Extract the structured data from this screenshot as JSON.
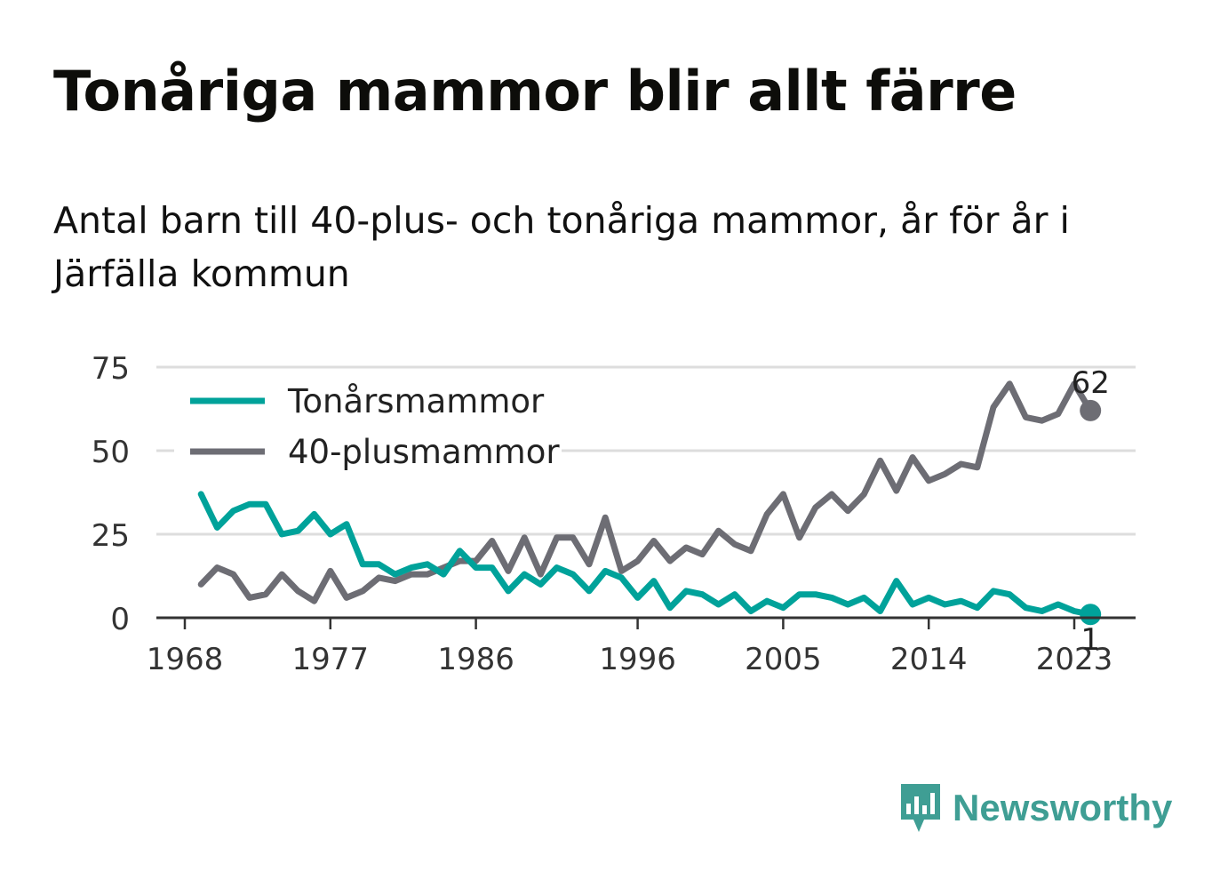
{
  "title": "Tonåriga mammor blir allt färre",
  "subtitle": "Antal barn till 40-plus- och tonåriga mammor, år för år i Järfälla kommun",
  "brand": {
    "name": "Newsworthy",
    "color": "#3f9e94"
  },
  "chart_data": {
    "type": "line",
    "title": "Tonåriga mammor blir allt färre",
    "subtitle": "Antal barn till 40-plus- och tonåriga mammor, år för år i Järfälla kommun",
    "xlabel": "",
    "ylabel": "",
    "x_ticks": [
      1968,
      1977,
      1986,
      1996,
      2005,
      2014,
      2023
    ],
    "y_ticks": [
      0,
      25,
      50,
      75
    ],
    "xlim": [
      1968,
      2026
    ],
    "ylim": [
      0,
      75
    ],
    "grid": true,
    "legend_position": "top-left",
    "years": [
      1969,
      1970,
      1971,
      1972,
      1973,
      1974,
      1975,
      1976,
      1977,
      1978,
      1979,
      1980,
      1981,
      1982,
      1983,
      1984,
      1985,
      1986,
      1987,
      1988,
      1989,
      1990,
      1991,
      1992,
      1993,
      1994,
      1995,
      1996,
      1997,
      1998,
      1999,
      2000,
      2001,
      2002,
      2003,
      2004,
      2005,
      2006,
      2007,
      2008,
      2009,
      2010,
      2011,
      2012,
      2013,
      2014,
      2015,
      2016,
      2017,
      2018,
      2019,
      2020,
      2021,
      2022,
      2023,
      2024
    ],
    "series": [
      {
        "name": "Tonårsmammor",
        "color": "#00a29a",
        "values": [
          37,
          27,
          32,
          34,
          34,
          25,
          26,
          31,
          25,
          28,
          16,
          16,
          13,
          15,
          16,
          13,
          20,
          15,
          15,
          8,
          13,
          10,
          15,
          13,
          8,
          14,
          12,
          6,
          11,
          3,
          8,
          7,
          4,
          7,
          2,
          5,
          3,
          7,
          7,
          6,
          4,
          6,
          2,
          11,
          4,
          6,
          4,
          5,
          3,
          8,
          7,
          3,
          2,
          4,
          2,
          1
        ],
        "end_label": "1"
      },
      {
        "name": "40-plusmammor",
        "color": "#6d6d74",
        "values": [
          10,
          15,
          13,
          6,
          7,
          13,
          8,
          5,
          14,
          6,
          8,
          12,
          11,
          13,
          13,
          15,
          17,
          17,
          23,
          14,
          24,
          13,
          24,
          24,
          16,
          30,
          14,
          17,
          23,
          17,
          21,
          19,
          26,
          22,
          20,
          31,
          37,
          24,
          33,
          37,
          32,
          37,
          47,
          38,
          48,
          41,
          43,
          46,
          45,
          63,
          70,
          60,
          59,
          61,
          70,
          62
        ],
        "end_label": "62"
      }
    ]
  }
}
